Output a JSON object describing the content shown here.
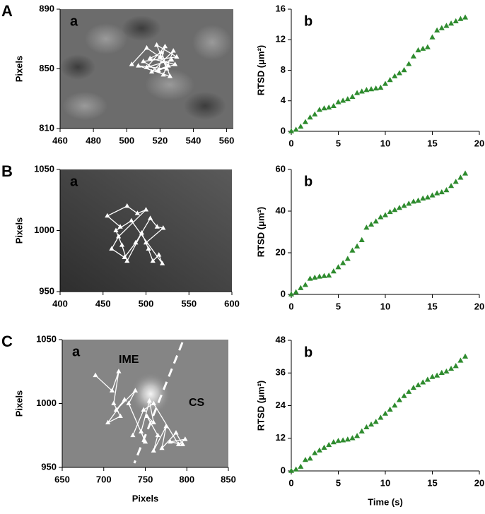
{
  "chart_data": [
    {
      "type": "line",
      "panel": "A",
      "label": "a",
      "ylabel": "Pixels",
      "color": "#ffffff",
      "x": [
        503,
        512,
        520,
        525,
        515,
        528,
        522,
        510,
        530,
        518,
        524,
        507,
        526,
        521,
        514,
        529,
        519,
        523,
        512,
        527
      ],
      "values": [
        853,
        864,
        858,
        852,
        848,
        862,
        846,
        855,
        858,
        866,
        850,
        852,
        845,
        861,
        857,
        853,
        849,
        865,
        851,
        856
      ],
      "xlim": [
        460,
        564
      ],
      "ylim": [
        810,
        890
      ],
      "xticks": [
        460,
        480,
        500,
        520,
        540,
        560
      ],
      "yticks": [
        810,
        850,
        890
      ]
    },
    {
      "type": "scatter",
      "label": "b",
      "ylabel": "RTSD (μm²)",
      "color": "#2e8b2e",
      "x": [
        0,
        0.5,
        1,
        1.5,
        2,
        2.5,
        3,
        3.5,
        4,
        4.5,
        5,
        5.5,
        6,
        6.5,
        7,
        7.5,
        8,
        8.5,
        9,
        9.5,
        10,
        10.5,
        11,
        11.5,
        12,
        12.5,
        13,
        13.5,
        14,
        14.5,
        15,
        15.5,
        16,
        16.5,
        17,
        17.5,
        18,
        18.5
      ],
      "values": [
        0,
        0.2,
        0.6,
        1.2,
        1.8,
        2.2,
        2.8,
        3.0,
        3.1,
        3.3,
        3.8,
        4.0,
        4.2,
        4.5,
        5.0,
        5.2,
        5.4,
        5.5,
        5.6,
        5.7,
        6.2,
        6.7,
        7.2,
        7.6,
        8.0,
        8.8,
        9.8,
        10.6,
        10.8,
        11.0,
        12.3,
        13.2,
        13.5,
        13.8,
        14.1,
        14.4,
        14.7,
        14.9
      ],
      "xlim": [
        0,
        20
      ],
      "ylim": [
        0,
        16
      ],
      "xticks": [
        0,
        5,
        10,
        15,
        20
      ],
      "yticks": [
        0,
        4,
        8,
        12,
        16
      ]
    },
    {
      "type": "line",
      "panel": "B",
      "label": "a",
      "ylabel": "Pixels",
      "color": "#ffffff",
      "x": [
        470,
        455,
        478,
        490,
        500,
        468,
        460,
        475,
        488,
        505,
        513,
        520,
        500,
        508,
        515,
        519,
        483,
        465,
        472,
        478,
        495,
        503
      ],
      "values": [
        1003,
        1012,
        1020,
        1014,
        1017,
        995,
        985,
        978,
        990,
        1010,
        1003,
        1002,
        990,
        975,
        980,
        973,
        1008,
        1000,
        988,
        975,
        998,
        985
      ],
      "xlim": [
        400,
        600
      ],
      "ylim": [
        950,
        1050
      ],
      "xticks": [
        400,
        450,
        500,
        550,
        600
      ],
      "yticks": [
        950,
        1000,
        1050
      ]
    },
    {
      "type": "scatter",
      "label": "b",
      "ylabel": "RTSD (μm²)",
      "color": "#2e8b2e",
      "x": [
        0,
        0.5,
        1,
        1.5,
        2,
        2.5,
        3,
        3.5,
        4,
        4.5,
        5,
        5.5,
        6,
        6.5,
        7,
        7.5,
        8,
        8.5,
        9,
        9.5,
        10,
        10.5,
        11,
        11.5,
        12,
        12.5,
        13,
        13.5,
        14,
        14.5,
        15,
        15.5,
        16,
        16.5,
        17,
        17.5,
        18,
        18.5
      ],
      "values": [
        0,
        1,
        3,
        4.5,
        7.5,
        8,
        8.5,
        8.8,
        9,
        11,
        13,
        15,
        17,
        21,
        23,
        26,
        32,
        33.5,
        35,
        37,
        38,
        39.5,
        40.5,
        41.5,
        42.5,
        43.5,
        44.5,
        45,
        46,
        46.5,
        47.5,
        48.5,
        49,
        50,
        52,
        54,
        56,
        58
      ],
      "xlim": [
        0,
        20
      ],
      "ylim": [
        0,
        60
      ],
      "xticks": [
        0,
        5,
        10,
        15,
        20
      ],
      "yticks": [
        0,
        20,
        40,
        60
      ]
    },
    {
      "type": "line",
      "panel": "C",
      "label": "a",
      "xlabel": "Pixels",
      "ylabel": "Pixels",
      "color": "#ffffff",
      "annotations": [
        "IME",
        "CS"
      ],
      "x": [
        690,
        710,
        718,
        712,
        720,
        705,
        725,
        715,
        738,
        730,
        750,
        745,
        755,
        760,
        752,
        765,
        760,
        775,
        770,
        787,
        795,
        780,
        798,
        790,
        760,
        748,
        735
      ],
      "values": [
        1022,
        1010,
        1025,
        1000,
        990,
        985,
        1003,
        995,
        1010,
        1000,
        970,
        978,
        1002,
        985,
        990,
        975,
        963,
        982,
        965,
        977,
        968,
        970,
        972,
        968,
        1000,
        995,
        975
      ],
      "xlim": [
        650,
        850
      ],
      "ylim": [
        950,
        1050
      ],
      "xticks": [
        650,
        700,
        750,
        800,
        850
      ],
      "yticks": [
        950,
        1000,
        1050
      ]
    },
    {
      "type": "scatter",
      "label": "b",
      "xlabel": "Time (s)",
      "ylabel": "RTSD (μm²)",
      "color": "#2e8b2e",
      "x": [
        0,
        0.5,
        1,
        1.5,
        2,
        2.5,
        3,
        3.5,
        4,
        4.5,
        5,
        5.5,
        6,
        6.5,
        7,
        7.5,
        8,
        8.5,
        9,
        9.5,
        10,
        10.5,
        11,
        11.5,
        12,
        12.5,
        13,
        13.5,
        14,
        14.5,
        15,
        15.5,
        16,
        16.5,
        17,
        17.5,
        18,
        18.5
      ],
      "values": [
        0,
        0.5,
        1.5,
        4,
        4.5,
        6.5,
        7.5,
        8.5,
        9.5,
        10.5,
        11,
        11.2,
        11.5,
        12,
        12.8,
        14.5,
        16,
        17,
        18,
        19.5,
        21,
        22.5,
        24,
        26,
        27.5,
        29,
        30.5,
        31.5,
        32.5,
        33.5,
        34.5,
        35,
        36,
        36.5,
        37.5,
        38.5,
        40.5,
        42
      ],
      "xlim": [
        0,
        20
      ],
      "ylim": [
        0,
        48
      ],
      "xticks": [
        0,
        5,
        10,
        15,
        20
      ],
      "yticks": [
        0,
        12,
        24,
        36,
        48
      ]
    }
  ]
}
